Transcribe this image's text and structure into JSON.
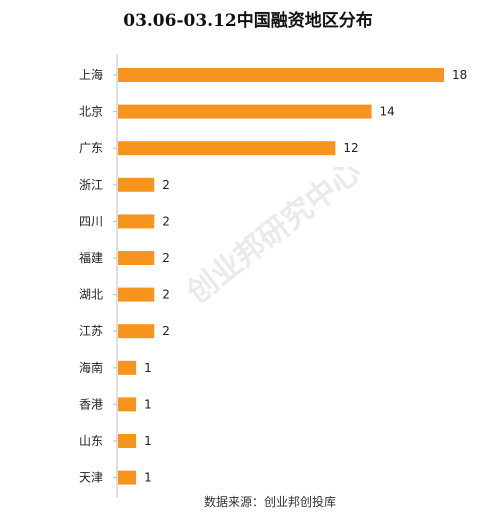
{
  "chart_data": {
    "type": "bar",
    "orientation": "horizontal",
    "title": "03.06-03.12中国融资地区分布",
    "categories": [
      "上海",
      "北京",
      "广东",
      "浙江",
      "四川",
      "福建",
      "湖北",
      "江苏",
      "海南",
      "香港",
      "山东",
      "天津"
    ],
    "values": [
      18,
      14,
      12,
      2,
      2,
      2,
      2,
      2,
      1,
      1,
      1,
      1
    ],
    "xlim": [
      0,
      18
    ],
    "grid": false,
    "bar_color": "#f7941d",
    "axis_color": "#bfbfbf"
  },
  "source_note": "数据来源：创业邦创投库",
  "watermark": "创业邦研究中心"
}
